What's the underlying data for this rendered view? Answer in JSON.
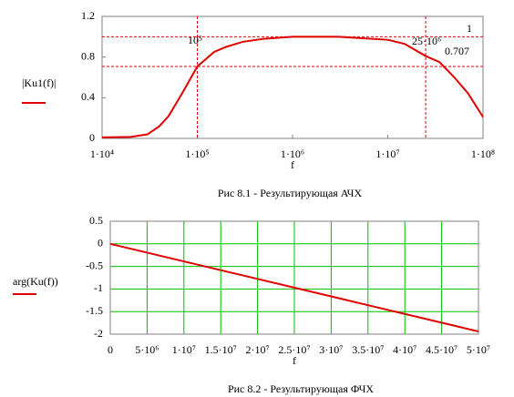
{
  "chart_data": [
    {
      "type": "line",
      "title": "Рис 8.1 - Результирующая АЧХ",
      "x_label": "f",
      "y_label": "|Ku1(f)|",
      "log_x": true,
      "grid": false,
      "x": [
        10000,
        20000,
        30000,
        40000,
        50000,
        70000,
        100000,
        150000,
        200000,
        300000,
        500000,
        1000000,
        3000000,
        10000000,
        15000000,
        25000000,
        35000000,
        50000000,
        70000000,
        100000000
      ],
      "series": [
        {
          "color": "#e00000",
          "values": [
            0.01,
            0.015,
            0.04,
            0.12,
            0.22,
            0.45,
            0.707,
            0.85,
            0.9,
            0.95,
            0.98,
            1,
            1,
            0.97,
            0.93,
            0.81,
            0.75,
            0.6,
            0.44,
            0.21
          ]
        }
      ],
      "xlim": [
        10000,
        100000000
      ],
      "xticks": [
        {
          "value": 10000,
          "label": "1·10⁴"
        },
        {
          "value": 100000,
          "label": "1·10⁵"
        },
        {
          "value": 1000000,
          "label": "1·10⁶"
        },
        {
          "value": 10000000,
          "label": "1·10⁷"
        },
        {
          "value": 100000000,
          "label": "1·10⁸"
        }
      ],
      "ylim": [
        0,
        1.2
      ],
      "yticks": [
        0,
        0.4,
        0.8,
        1.2
      ],
      "x_markers": [
        {
          "value": 100000,
          "label": "10⁵"
        },
        {
          "value": 25000000,
          "label": "25·10⁶"
        }
      ],
      "y_markers": [
        1,
        0.707
      ],
      "marker_color": "#e00000"
    },
    {
      "type": "line",
      "title": "Рис 8.2 - Результирующая ФЧХ",
      "x_label": "f",
      "y_label": "arg(Ku(f))",
      "log_x": false,
      "grid": true,
      "grid_color": "#00c000",
      "x": [
        0,
        50000000
      ],
      "series": [
        {
          "color": "#e00000",
          "values": [
            0,
            -1.94
          ]
        }
      ],
      "xlim": [
        0,
        50000000
      ],
      "xticks": [
        0,
        {
          "value": 5000000,
          "label": "5·10⁶"
        },
        {
          "value": 10000000,
          "label": "1·10⁷"
        },
        {
          "value": 15000000,
          "label": "1.5·10⁷"
        },
        {
          "value": 20000000,
          "label": "2·10⁷"
        },
        {
          "value": 25000000,
          "label": "2.5·10⁷"
        },
        {
          "value": 30000000,
          "label": "3·10⁷"
        },
        {
          "value": 35000000,
          "label": "3.5·10⁷"
        },
        {
          "value": 40000000,
          "label": "4·10⁷"
        },
        {
          "value": 45000000,
          "label": "4.5·10⁷"
        },
        {
          "value": 50000000,
          "label": "5·10⁷"
        }
      ],
      "ylim": [
        -2,
        0.5
      ],
      "yticks": [
        0.5,
        0,
        -0.5,
        -1,
        -1.5,
        -2
      ]
    }
  ]
}
